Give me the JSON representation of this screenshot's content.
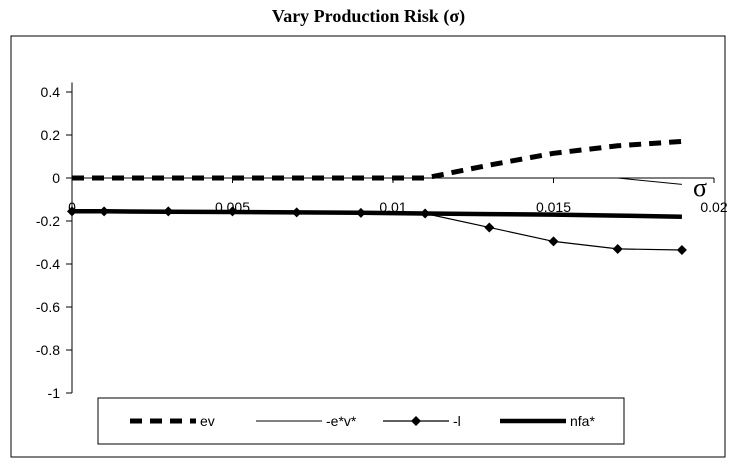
{
  "chart_data": {
    "type": "line",
    "title": "Vary Production Risk (σ)",
    "xlabel": "σ",
    "ylabel": "",
    "xlim": [
      0,
      0.02
    ],
    "ylim": [
      -1,
      0.5
    ],
    "x_ticks": [
      0,
      0.005,
      0.01,
      0.015,
      0.02
    ],
    "x_tick_labels": [
      "0",
      "0.005",
      "0.01",
      "0.015",
      "0.02"
    ],
    "y_ticks": [
      0.4,
      0.2,
      0,
      -0.2,
      -0.4,
      -0.6,
      -0.8,
      -1
    ],
    "y_tick_labels": [
      "0.4",
      "0.2",
      "0",
      "-0.2",
      "-0.4",
      "-0.6",
      "-0.8",
      "-1"
    ],
    "legend_position": "bottom",
    "series": [
      {
        "name": "ev",
        "style": "dashed-thick",
        "color": "#000000",
        "x": [
          0,
          0.001,
          0.003,
          0.005,
          0.007,
          0.009,
          0.011,
          0.013,
          0.015,
          0.017,
          0.019
        ],
        "y": [
          0,
          0,
          0,
          0,
          0,
          0,
          0,
          0.06,
          0.115,
          0.15,
          0.17
        ]
      },
      {
        "name": "-e*v*",
        "style": "thin",
        "color": "#000000",
        "x": [
          0,
          0.001,
          0.003,
          0.005,
          0.007,
          0.009,
          0.011,
          0.013,
          0.015,
          0.017,
          0.019
        ],
        "y": [
          0,
          0,
          0,
          0,
          0,
          0,
          0,
          0,
          0,
          0,
          -0.03
        ]
      },
      {
        "name": "-l",
        "style": "diamond",
        "color": "#000000",
        "x": [
          0,
          0.001,
          0.003,
          0.005,
          0.007,
          0.009,
          0.011,
          0.013,
          0.015,
          0.017,
          0.019
        ],
        "y": [
          -0.155,
          -0.155,
          -0.155,
          -0.155,
          -0.16,
          -0.162,
          -0.165,
          -0.23,
          -0.295,
          -0.33,
          -0.335
        ]
      },
      {
        "name": "nfa*",
        "style": "thick",
        "color": "#000000",
        "x": [
          0,
          0.001,
          0.003,
          0.005,
          0.007,
          0.009,
          0.011,
          0.013,
          0.015,
          0.017,
          0.019
        ],
        "y": [
          -0.155,
          -0.155,
          -0.157,
          -0.158,
          -0.16,
          -0.162,
          -0.165,
          -0.168,
          -0.17,
          -0.175,
          -0.18
        ]
      }
    ]
  }
}
